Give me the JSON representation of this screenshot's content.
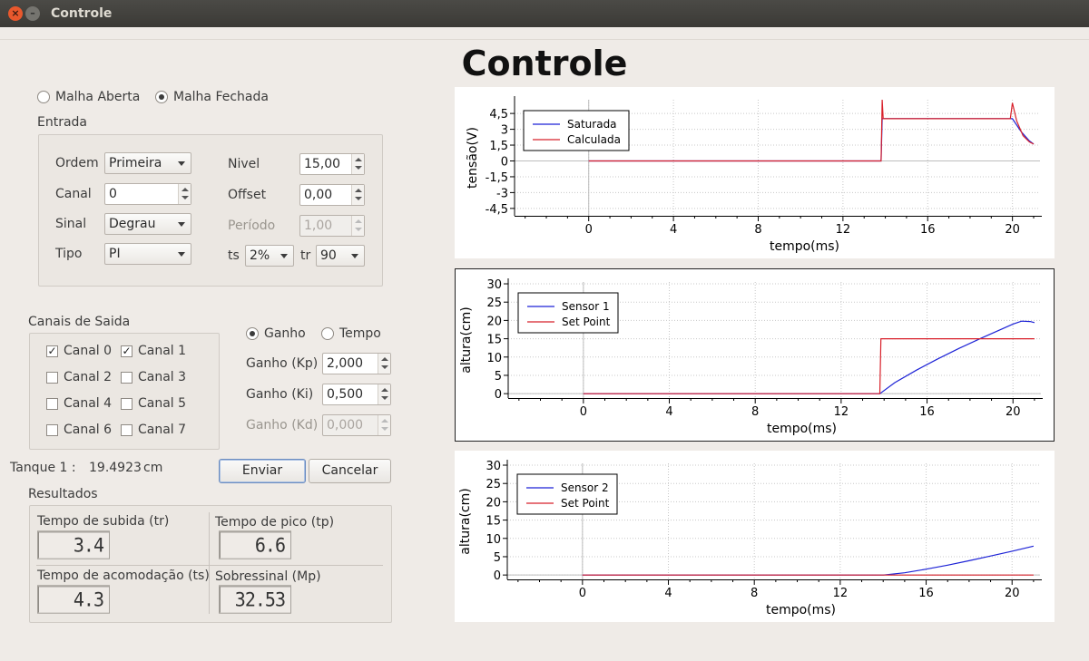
{
  "window": {
    "title": "Controle"
  },
  "main_title": "Controle",
  "loop": {
    "open_label": "Malha Aberta",
    "closed_label": "Malha Fechada",
    "selected": "closed"
  },
  "entrada": {
    "title": "Entrada",
    "ordem_label": "Ordem",
    "ordem_value": "Primeira",
    "canal_label": "Canal",
    "canal_value": "0",
    "sinal_label": "Sinal",
    "sinal_value": "Degrau",
    "tipo_label": "Tipo",
    "tipo_value": "PI",
    "nivel_label": "Nivel",
    "nivel_value": "15,00",
    "offset_label": "Offset",
    "offset_value": "0,00",
    "periodo_label": "Período",
    "periodo_value": "1,00",
    "ts_label": "ts",
    "ts_value": "2%",
    "tr_label": "tr",
    "tr_value": "90"
  },
  "canais": {
    "title": "Canais de Saida",
    "items": [
      {
        "label": "Canal 0",
        "checked": true
      },
      {
        "label": "Canal 1",
        "checked": true
      },
      {
        "label": "Canal 2",
        "checked": false
      },
      {
        "label": "Canal 3",
        "checked": false
      },
      {
        "label": "Canal 4",
        "checked": false
      },
      {
        "label": "Canal 5",
        "checked": false
      },
      {
        "label": "Canal 6",
        "checked": false
      },
      {
        "label": "Canal 7",
        "checked": false
      }
    ]
  },
  "gain_mode": {
    "ganho_label": "Ganho",
    "tempo_label": "Tempo",
    "selected": "ganho"
  },
  "gains": {
    "kp_label": "Ganho (Kp)",
    "kp_value": "2,000",
    "ki_label": "Ganho (Ki)",
    "ki_value": "0,500",
    "kd_label": "Ganho (Kd)",
    "kd_value": "0,000"
  },
  "tanque": {
    "label": "Tanque 1 :",
    "value": "19.4923",
    "unit": "cm"
  },
  "buttons": {
    "enviar": "Enviar",
    "cancelar": "Cancelar"
  },
  "resultados": {
    "title": "Resultados",
    "tr_label": "Tempo de subida (tr)",
    "tr_value": "3.4",
    "tp_label": "Tempo de pico (tp)",
    "tp_value": "6.6",
    "ts_label": "Tempo de acomodação (ts)",
    "ts_value": "4.3",
    "mp_label": "Sobressinal (Mp)",
    "mp_value": "32.53"
  },
  "colors": {
    "blue": "#1c22d6",
    "red": "#d8202a",
    "grid": "#c8c8c8",
    "axis": "#000000"
  },
  "chart_data": [
    {
      "type": "line",
      "xlabel": "tempo(ms)",
      "ylabel": "tensão(V)",
      "xlim": [
        -3.5,
        21.3
      ],
      "ylim": [
        -5.2,
        5.8
      ],
      "xticks": [
        0,
        4,
        8,
        12,
        16,
        20
      ],
      "xtick_labels": [
        "0",
        "4",
        "8",
        "12",
        "16",
        "20"
      ],
      "yticks": [
        4.5,
        3,
        1.5,
        0,
        -1.5,
        -3,
        -4.5
      ],
      "ytick_labels": [
        "4,5",
        "3",
        "1,5",
        "0",
        "-1,5",
        "-3",
        "-4,5"
      ],
      "grid": true,
      "legend": "top-left",
      "series": [
        {
          "name": "Saturada",
          "color": "#1c22d6",
          "x": [
            0,
            13.8,
            13.85,
            20.0,
            20.4,
            20.8,
            21.0
          ],
          "y": [
            0,
            0,
            4.0,
            4.0,
            2.8,
            1.9,
            1.6
          ]
        },
        {
          "name": "Calculada",
          "color": "#d8202a",
          "x": [
            0,
            13.8,
            13.85,
            13.9,
            19.9,
            20.0,
            20.2,
            20.5,
            20.8,
            21.0
          ],
          "y": [
            0,
            0,
            5.8,
            4.0,
            4.0,
            5.5,
            3.8,
            2.4,
            1.8,
            1.6
          ]
        }
      ]
    },
    {
      "type": "line",
      "xlabel": "tempo(ms)",
      "ylabel": "altura(cm)",
      "xlim": [
        -3.5,
        21.3
      ],
      "ylim": [
        -1.2,
        30.5
      ],
      "xticks": [
        0,
        4,
        8,
        12,
        16,
        20
      ],
      "xtick_labels": [
        "0",
        "4",
        "8",
        "12",
        "16",
        "20"
      ],
      "yticks": [
        0,
        5,
        10,
        15,
        20,
        25,
        30
      ],
      "ytick_labels": [
        "0",
        "5",
        "10",
        "15",
        "20",
        "25",
        "30"
      ],
      "grid": true,
      "legend": "top-left",
      "series": [
        {
          "name": "Sensor 1",
          "color": "#1c22d6",
          "x": [
            0,
            13.8,
            14.5,
            15.5,
            16.5,
            17.5,
            18.5,
            19.5,
            20.0,
            20.4,
            20.8,
            21.0
          ],
          "y": [
            0,
            0,
            3.0,
            6.4,
            9.5,
            12.4,
            15.1,
            17.7,
            19.0,
            19.8,
            19.7,
            19.4
          ]
        },
        {
          "name": "Set Point",
          "color": "#d8202a",
          "x": [
            0,
            13.8,
            13.85,
            21.0
          ],
          "y": [
            0,
            0,
            15,
            15
          ]
        }
      ]
    },
    {
      "type": "line",
      "xlabel": "tempo(ms)",
      "ylabel": "altura(cm)",
      "xlim": [
        -3.5,
        21.3
      ],
      "ylim": [
        -1.2,
        30.5
      ],
      "xticks": [
        0,
        4,
        8,
        12,
        16,
        20
      ],
      "xtick_labels": [
        "0",
        "4",
        "8",
        "12",
        "16",
        "20"
      ],
      "yticks": [
        0,
        5,
        10,
        15,
        20,
        25,
        30
      ],
      "ytick_labels": [
        "0",
        "5",
        "10",
        "15",
        "20",
        "25",
        "30"
      ],
      "grid": true,
      "legend": "top-left",
      "series": [
        {
          "name": "Sensor 2",
          "color": "#1c22d6",
          "x": [
            0,
            14.0,
            15.0,
            16.0,
            17.0,
            18.0,
            19.0,
            20.0,
            21.0
          ],
          "y": [
            0,
            0,
            0.6,
            1.6,
            2.7,
            3.9,
            5.2,
            6.5,
            7.9
          ]
        },
        {
          "name": "Set Point",
          "color": "#d8202a",
          "x": [
            0,
            21.0
          ],
          "y": [
            0,
            0
          ]
        }
      ]
    }
  ]
}
